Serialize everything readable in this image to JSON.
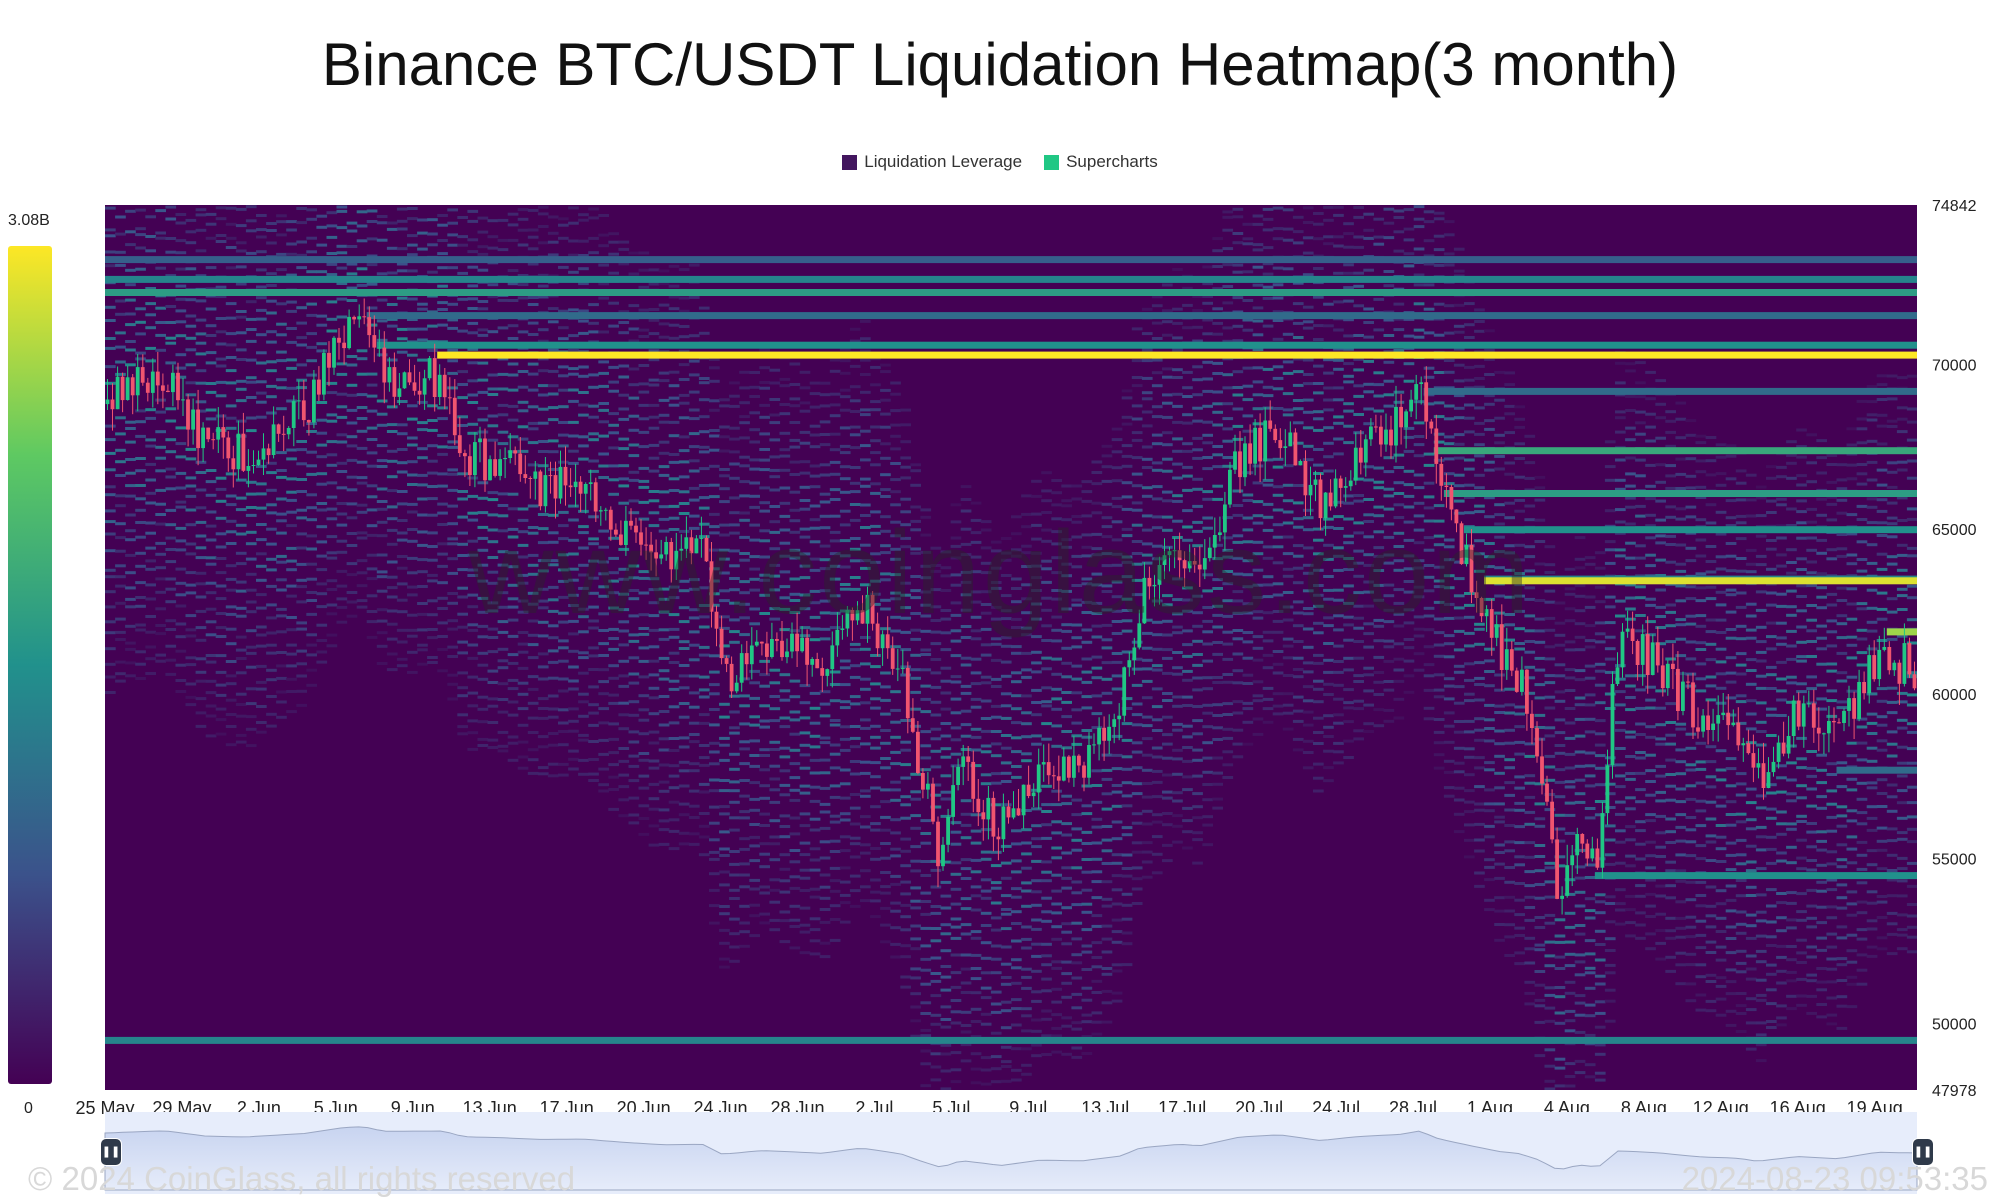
{
  "chart_data": {
    "type": "heatmap",
    "title": "Binance BTC/USDT Liquidation Heatmap(3 month)",
    "legend": [
      {
        "label": "Liquidation Leverage",
        "color": "#43165f"
      },
      {
        "label": "Supercharts",
        "color": "#20c784"
      }
    ],
    "legend_position": "top-center",
    "colorbar": {
      "max_label": "3.08B",
      "min_label": "0",
      "colors": [
        "#440154",
        "#3b528b",
        "#21918c",
        "#5ec962",
        "#fde725"
      ]
    },
    "x_tick_labels": [
      "25 May",
      "29 May",
      "2 Jun",
      "5 Jun",
      "9 Jun",
      "13 Jun",
      "17 Jun",
      "20 Jun",
      "24 Jun",
      "28 Jun",
      "2 Jul",
      "5 Jul",
      "9 Jul",
      "13 Jul",
      "17 Jul",
      "20 Jul",
      "24 Jul",
      "28 Jul",
      "1 Aug",
      "4 Aug",
      "8 Aug",
      "12 Aug",
      "16 Aug",
      "19 Aug"
    ],
    "y_tick_labels": [
      "74842",
      "70000",
      "65000",
      "60000",
      "55000",
      "50000",
      "47978"
    ],
    "ylim": [
      47978,
      74842
    ],
    "date_range": [
      "2024-05-24",
      "2024-08-23"
    ],
    "price_path": [
      [
        "2024-05-24",
        68800
      ],
      [
        "2024-05-27",
        69700
      ],
      [
        "2024-05-29",
        67600
      ],
      [
        "2024-05-31",
        67200
      ],
      [
        "2024-06-03",
        68600
      ],
      [
        "2024-06-05",
        71000
      ],
      [
        "2024-06-06",
        71300
      ],
      [
        "2024-06-07",
        69500
      ],
      [
        "2024-06-10",
        69600
      ],
      [
        "2024-06-11",
        67300
      ],
      [
        "2024-06-13",
        66900
      ],
      [
        "2024-06-15",
        66200
      ],
      [
        "2024-06-17",
        66400
      ],
      [
        "2024-06-19",
        65100
      ],
      [
        "2024-06-21",
        64100
      ],
      [
        "2024-06-23",
        64300
      ],
      [
        "2024-06-24",
        60300
      ],
      [
        "2024-06-26",
        61800
      ],
      [
        "2024-06-29",
        60700
      ],
      [
        "2024-07-01",
        62800
      ],
      [
        "2024-07-03",
        60400
      ],
      [
        "2024-07-04",
        57500
      ],
      [
        "2024-07-05",
        55000
      ],
      [
        "2024-07-06",
        57800
      ],
      [
        "2024-07-08",
        55800
      ],
      [
        "2024-07-10",
        58000
      ],
      [
        "2024-07-12",
        57600
      ],
      [
        "2024-07-14",
        59600
      ],
      [
        "2024-07-15",
        62900
      ],
      [
        "2024-07-17",
        64300
      ],
      [
        "2024-07-18",
        63700
      ],
      [
        "2024-07-20",
        67200
      ],
      [
        "2024-07-22",
        68100
      ],
      [
        "2024-07-24",
        65800
      ],
      [
        "2024-07-26",
        67400
      ],
      [
        "2024-07-28",
        68200
      ],
      [
        "2024-07-29",
        69600
      ],
      [
        "2024-07-30",
        66400
      ],
      [
        "2024-07-31",
        64700
      ],
      [
        "2024-08-02",
        61400
      ],
      [
        "2024-08-03",
        60600
      ],
      [
        "2024-08-04",
        58100
      ],
      [
        "2024-08-05",
        53900
      ],
      [
        "2024-08-06",
        56000
      ],
      [
        "2024-08-07",
        55200
      ],
      [
        "2024-08-08",
        61700
      ],
      [
        "2024-08-10",
        60900
      ],
      [
        "2024-08-12",
        59300
      ],
      [
        "2024-08-14",
        58700
      ],
      [
        "2024-08-15",
        57500
      ],
      [
        "2024-08-17",
        59400
      ],
      [
        "2024-08-19",
        58500
      ],
      [
        "2024-08-21",
        61100
      ],
      [
        "2024-08-23",
        60800
      ]
    ],
    "liquidation_levels": [
      {
        "price": 72200,
        "intensity": 0.55
      },
      {
        "price": 72600,
        "intensity": 0.45
      },
      {
        "price": 70300,
        "intensity": 1.0
      },
      {
        "price": 70600,
        "intensity": 0.5
      },
      {
        "price": 71500,
        "intensity": 0.35
      },
      {
        "price": 73200,
        "intensity": 0.3
      },
      {
        "price": 69200,
        "intensity": 0.35
      },
      {
        "price": 67400,
        "intensity": 0.6
      },
      {
        "price": 66100,
        "intensity": 0.55
      },
      {
        "price": 65000,
        "intensity": 0.5
      },
      {
        "price": 63500,
        "intensity": 0.45
      },
      {
        "price": 63450,
        "intensity": 0.95
      },
      {
        "price": 61900,
        "intensity": 0.85
      },
      {
        "price": 60600,
        "intensity": 0.4
      },
      {
        "price": 57700,
        "intensity": 0.35
      },
      {
        "price": 54500,
        "intensity": 0.5
      },
      {
        "price": 49500,
        "intensity": 0.45
      }
    ]
  },
  "watermark": "www.coinglass.com",
  "footer": {
    "copyright": "© 2024 CoinGlass, all rights reserved",
    "timestamp": "2024-08-23 09:53:35"
  },
  "navigator": {
    "handle_left_icon": "pause-icon",
    "handle_right_icon": "pause-icon"
  }
}
